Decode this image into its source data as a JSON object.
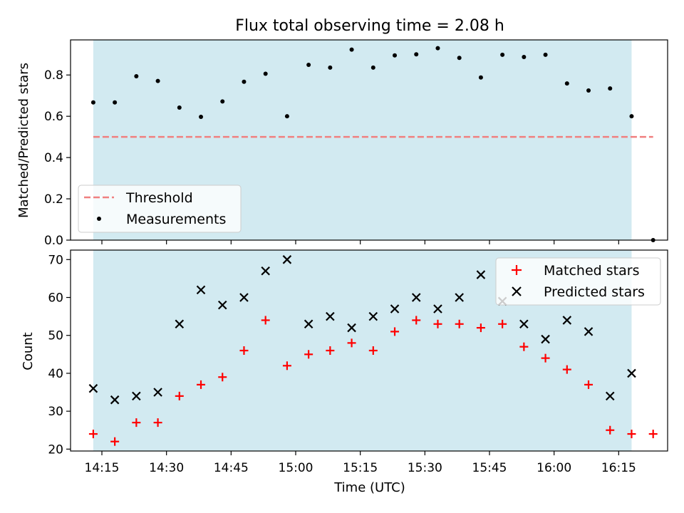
{
  "chart_data": [
    {
      "type": "scatter",
      "title": "Flux total observing time = 2.08 h",
      "ylabel": "Matched/Predicted stars",
      "xlabel": "",
      "ylim": [
        0,
        0.97
      ],
      "yticks": [
        0.0,
        0.2,
        0.4,
        0.6,
        0.8
      ],
      "ytick_labels": [
        "0.0",
        "0.2",
        "0.4",
        "0.6",
        "0.8"
      ],
      "x": [
        "14:13",
        "14:18",
        "14:23",
        "14:28",
        "14:33",
        "14:38",
        "14:43",
        "14:48",
        "14:53",
        "14:58",
        "15:03",
        "15:08",
        "15:13",
        "15:18",
        "15:23",
        "15:28",
        "15:33",
        "15:38",
        "15:43",
        "15:48",
        "15:53",
        "15:58",
        "16:03",
        "16:08",
        "16:13",
        "16:18",
        "16:23"
      ],
      "shaded_interval": [
        "14:13",
        "16:18"
      ],
      "series": [
        {
          "name": "Measurements",
          "marker": "dot",
          "color": "#000000",
          "values": [
            0.667,
            0.667,
            0.794,
            0.771,
            0.642,
            0.597,
            0.672,
            0.767,
            0.806,
            0.6,
            0.849,
            0.836,
            0.923,
            0.836,
            0.895,
            0.9,
            0.93,
            0.883,
            0.788,
            0.898,
            0.887,
            0.898,
            0.759,
            0.725,
            0.735,
            0.6,
            0
          ]
        },
        {
          "name": "Threshold",
          "style": "dashed-line",
          "color": "#f08080",
          "x_range": [
            "14:13",
            "16:23"
          ],
          "value": 0.5
        }
      ],
      "legend": {
        "placement": "lower-left",
        "entries": [
          "Threshold",
          "Measurements"
        ]
      },
      "grid": false
    },
    {
      "type": "scatter",
      "xlabel": "Time (UTC)",
      "ylabel": "Count",
      "ylim": [
        19.5,
        72.5
      ],
      "yticks": [
        20,
        30,
        40,
        50,
        60,
        70
      ],
      "ytick_labels": [
        "20",
        "30",
        "40",
        "50",
        "60",
        "70"
      ],
      "xticks": [
        "14:15",
        "14:30",
        "14:45",
        "15:00",
        "15:15",
        "15:30",
        "15:45",
        "16:00",
        "16:15"
      ],
      "x": [
        "14:13",
        "14:18",
        "14:23",
        "14:28",
        "14:33",
        "14:38",
        "14:43",
        "14:48",
        "14:53",
        "14:58",
        "15:03",
        "15:08",
        "15:13",
        "15:18",
        "15:23",
        "15:28",
        "15:33",
        "15:38",
        "15:43",
        "15:48",
        "15:53",
        "15:58",
        "16:03",
        "16:08",
        "16:13",
        "16:18",
        "16:23"
      ],
      "shaded_interval": [
        "14:13",
        "16:18"
      ],
      "series": [
        {
          "name": "Matched stars",
          "marker": "plus",
          "color": "#ff0000",
          "values": [
            24,
            22,
            27,
            27,
            34,
            37,
            39,
            46,
            54,
            42,
            45,
            46,
            48,
            46,
            51,
            54,
            53,
            53,
            52,
            53,
            47,
            44,
            41,
            37,
            25,
            24,
            24
          ]
        },
        {
          "name": "Predicted stars",
          "marker": "x",
          "color": "#000000",
          "values": [
            36,
            33,
            34,
            35,
            53,
            62,
            58,
            60,
            67,
            70,
            53,
            55,
            52,
            55,
            57,
            60,
            57,
            60,
            66,
            59,
            53,
            49,
            54,
            51,
            34,
            40,
            null
          ]
        }
      ],
      "legend": {
        "placement": "upper-right",
        "entries": [
          "Matched stars",
          "Predicted stars"
        ]
      },
      "grid": false
    }
  ],
  "colors": {
    "shade": "#add8e6",
    "threshold": "#f08080",
    "matched": "#ff0000",
    "predicted": "#000000",
    "measurement": "#000000"
  }
}
